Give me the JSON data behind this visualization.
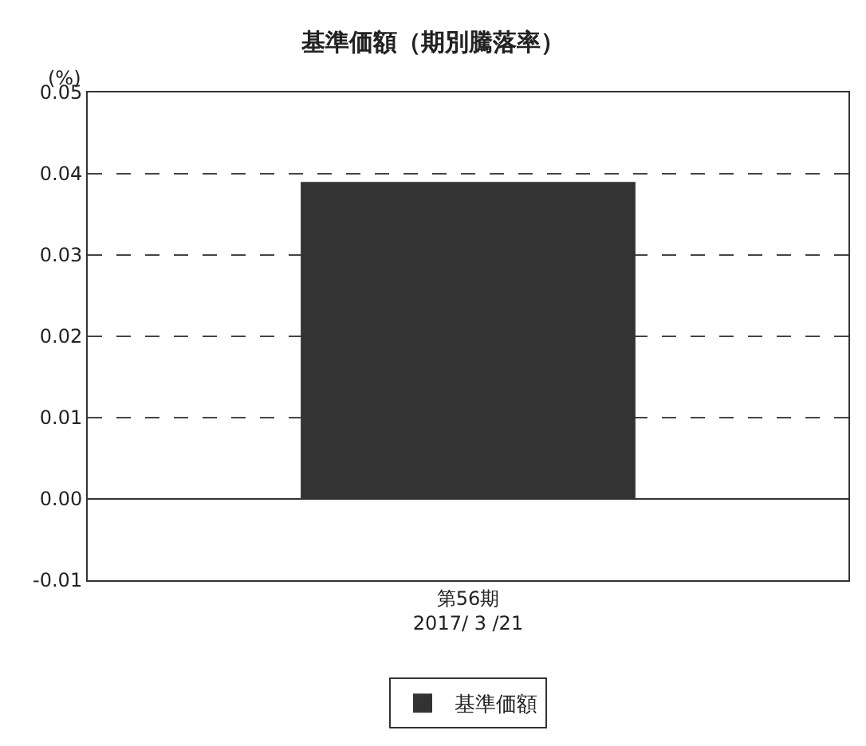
{
  "chart_data": {
    "type": "bar",
    "title": "基準価額（期別騰落率）",
    "ylabel": "(%)",
    "categories": [
      "第56期\n2017/ 3 /21"
    ],
    "series": [
      {
        "name": "基準価額",
        "color": "#333333",
        "values": [
          0.039
        ]
      }
    ],
    "ylim": [
      -0.01,
      0.05
    ],
    "yticks": [
      {
        "value": -0.01,
        "label": "-0.01"
      },
      {
        "value": 0,
        "label": "0.00"
      },
      {
        "value": 0.01,
        "label": "0.01"
      },
      {
        "value": 0.02,
        "label": "0.02"
      },
      {
        "value": 0.03,
        "label": "0.03"
      },
      {
        "value": 0.04,
        "label": "0.04"
      },
      {
        "value": 0.05,
        "label": "0.05"
      }
    ],
    "grid": "y",
    "legend": "bottom"
  }
}
